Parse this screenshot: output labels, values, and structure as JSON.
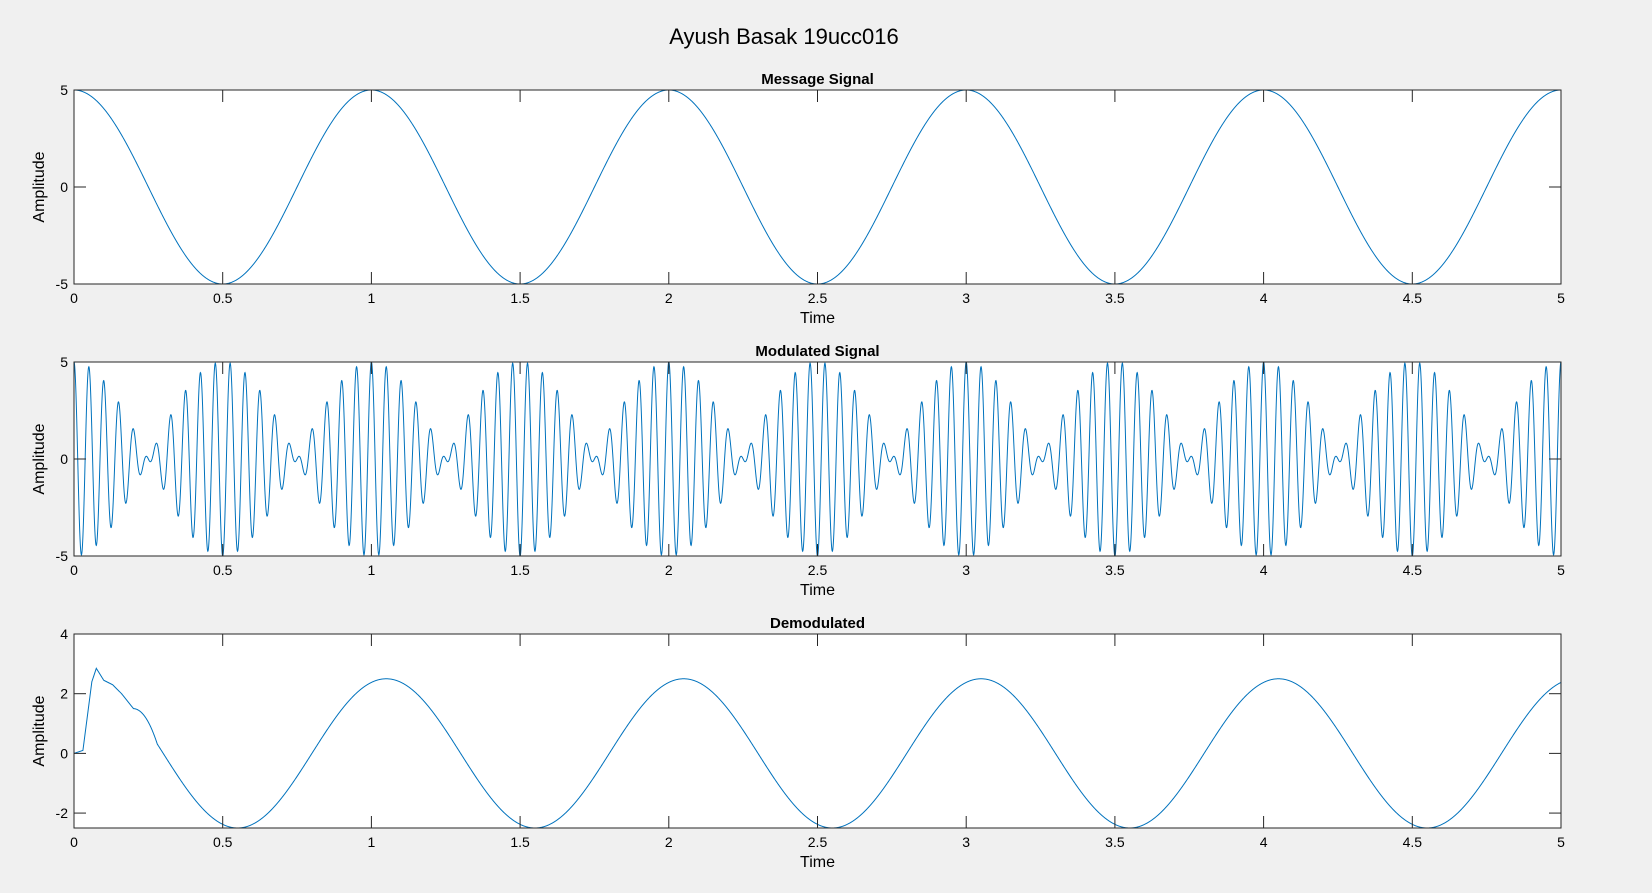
{
  "figure": {
    "title": "Ayush Basak 19ucc016",
    "background": "#f0f0f0"
  },
  "colors": {
    "line": "#0072bd",
    "axes": "#262626",
    "plot_bg": "#ffffff"
  },
  "chart_data": [
    {
      "type": "line",
      "title": "Message Signal",
      "xlabel": "Time",
      "ylabel": "Amplitude",
      "xlim": [
        0,
        5
      ],
      "ylim": [
        -5,
        5
      ],
      "xticks": [
        0,
        0.5,
        1,
        1.5,
        2,
        2.5,
        3,
        3.5,
        4,
        4.5,
        5
      ],
      "xtick_labels": [
        "0",
        "0.5",
        "1",
        "1.5",
        "2",
        "2.5",
        "3",
        "3.5",
        "4",
        "4.5",
        "5"
      ],
      "yticks": [
        -5,
        0,
        5
      ],
      "ytick_labels": [
        "-5",
        "0",
        "5"
      ],
      "grid": false,
      "series": [
        {
          "function": "A*cos(2*pi*fm*t)",
          "A": 5,
          "fm": 1,
          "t_range": [
            0,
            5
          ]
        }
      ]
    },
    {
      "type": "line",
      "title": "Modulated Signal",
      "xlabel": "Time",
      "ylabel": "Amplitude",
      "xlim": [
        0,
        5
      ],
      "ylim": [
        -5,
        5
      ],
      "xticks": [
        0,
        0.5,
        1,
        1.5,
        2,
        2.5,
        3,
        3.5,
        4,
        4.5,
        5
      ],
      "xtick_labels": [
        "0",
        "0.5",
        "1",
        "1.5",
        "2",
        "2.5",
        "3",
        "3.5",
        "4",
        "4.5",
        "5"
      ],
      "yticks": [
        -5,
        0,
        5
      ],
      "ytick_labels": [
        "-5",
        "0",
        "5"
      ],
      "grid": false,
      "series": [
        {
          "function": "A*cos(2*pi*fm*t)*cos(2*pi*fc*t)",
          "A": 5,
          "fm": 1,
          "fc": 20,
          "t_range": [
            0,
            5
          ]
        }
      ]
    },
    {
      "type": "line",
      "title": "Demodulated",
      "xlabel": "Time",
      "ylabel": "Amplitude",
      "xlim": [
        0,
        5
      ],
      "ylim": [
        -2.5,
        4
      ],
      "xticks": [
        0,
        0.5,
        1,
        1.5,
        2,
        2.5,
        3,
        3.5,
        4,
        4.5,
        5
      ],
      "xtick_labels": [
        "0",
        "0.5",
        "1",
        "1.5",
        "2",
        "2.5",
        "3",
        "3.5",
        "4",
        "4.5",
        "5"
      ],
      "yticks": [
        -2,
        0,
        2,
        4
      ],
      "ytick_labels": [
        "-2",
        "0",
        "2",
        "4"
      ],
      "grid": false,
      "series": [
        {
          "function": "2.5*cos(2*pi*fm*(t-0.05)) after filter transient",
          "amplitude": 2.5,
          "fm": 1,
          "delay": 0.05,
          "transient_points": [
            [
              0,
              0
            ],
            [
              0.03,
              0.1
            ],
            [
              0.06,
              2.4
            ],
            [
              0.075,
              2.85
            ],
            [
              0.1,
              2.45
            ],
            [
              0.13,
              2.3
            ],
            [
              0.16,
              2.0
            ],
            [
              0.2,
              1.5
            ]
          ],
          "t_range": [
            0,
            5
          ]
        }
      ]
    }
  ]
}
